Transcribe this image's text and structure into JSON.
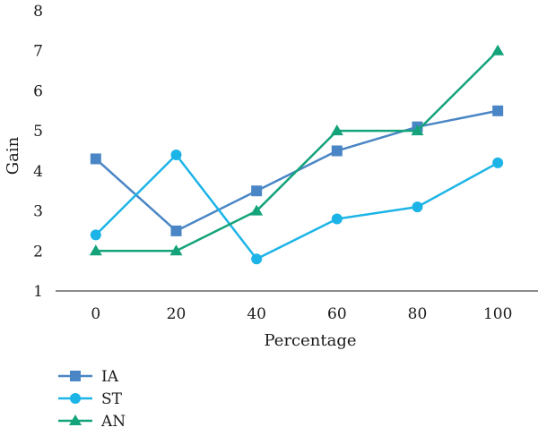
{
  "chart_data": {
    "type": "line",
    "xlabel": "Percentage",
    "ylabel": "Gain",
    "x": [
      0,
      20,
      40,
      60,
      80,
      100
    ],
    "x_tick_labels": [
      "0",
      "20",
      "40",
      "60",
      "80",
      "100"
    ],
    "y_tick_labels": [
      "1",
      "2",
      "3",
      "4",
      "5",
      "6",
      "7",
      "8"
    ],
    "ylim": [
      1,
      8
    ],
    "grid": false,
    "legend_position": "bottom-left",
    "series": [
      {
        "name": "IA",
        "values": [
          4.3,
          2.5,
          3.5,
          4.5,
          5.1,
          5.5
        ],
        "color": "#4a86c5",
        "marker": "square"
      },
      {
        "name": "ST",
        "values": [
          2.4,
          4.4,
          1.8,
          2.8,
          3.1,
          4.2
        ],
        "color": "#1cb4e6",
        "marker": "circle"
      },
      {
        "name": "AN",
        "values": [
          2.0,
          2.0,
          3.0,
          5.0,
          5.0,
          7.0
        ],
        "color": "#14a37a",
        "marker": "triangle"
      }
    ]
  }
}
